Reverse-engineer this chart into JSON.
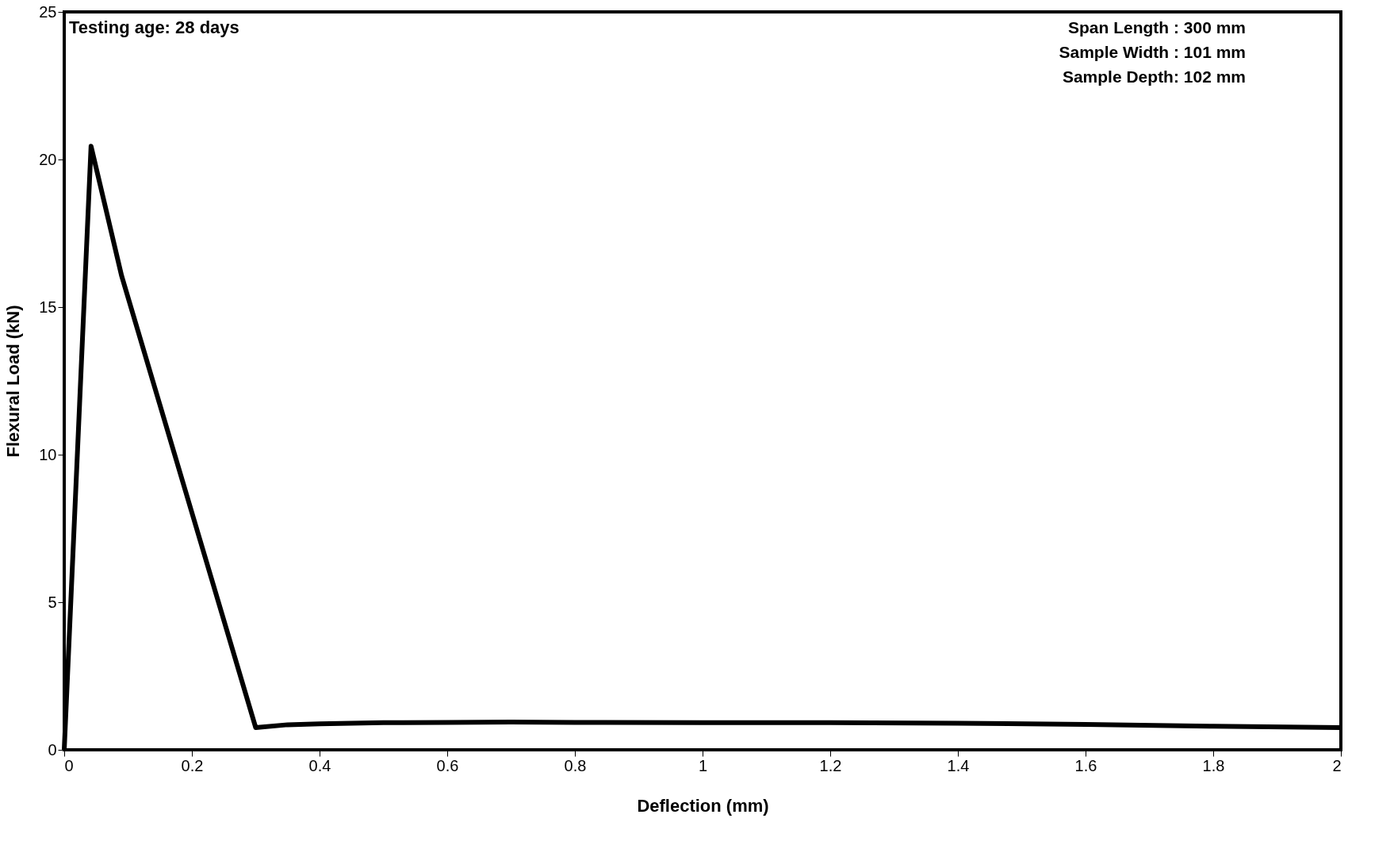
{
  "chart_data": {
    "type": "line",
    "xlabel": "Deflection (mm)",
    "ylabel": "Flexural Load (kN)",
    "x": [
      0,
      0.042,
      0.09,
      0.3,
      0.35,
      0.4,
      0.5,
      0.6,
      0.7,
      0.8,
      1.0,
      1.2,
      1.4,
      1.6,
      1.8,
      2.0
    ],
    "series": [
      {
        "color": "#000000",
        "values": [
          0,
          20.45,
          16.05,
          0.75,
          0.85,
          0.88,
          0.92,
          0.93,
          0.94,
          0.93,
          0.92,
          0.92,
          0.9,
          0.86,
          0.8,
          0.75
        ]
      }
    ],
    "xlim": [
      0,
      2
    ],
    "ylim": [
      0,
      25
    ],
    "xticks": [
      0,
      0.2,
      0.4,
      0.6,
      0.8,
      1,
      1.2,
      1.4,
      1.6,
      1.8,
      2
    ],
    "yticks": [
      0,
      5,
      10,
      15,
      20,
      25
    ],
    "grid": false,
    "legend": false,
    "marker": "none",
    "line_style": "solid",
    "annotations": [
      "Testing age: 28 days",
      "Span   Length : 300 mm\nSample Width : 101 mm\nSample Depth:  102 mm"
    ]
  }
}
